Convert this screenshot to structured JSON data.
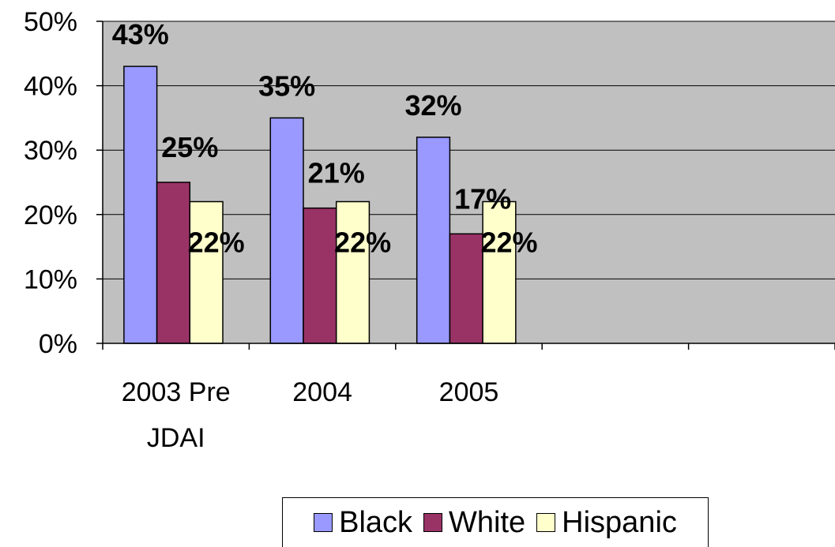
{
  "chart_data": {
    "type": "bar",
    "categories": [
      "2003 Pre JDAI",
      "2004",
      "2005"
    ],
    "category_lines": [
      [
        "2003 Pre",
        "JDAI"
      ],
      [
        "2004"
      ],
      [
        "2005"
      ]
    ],
    "empty_slots": 2,
    "series": [
      {
        "name": "Black",
        "values": [
          43,
          35,
          32
        ],
        "labels": [
          "43%",
          "35%",
          "32%"
        ],
        "color": "#9999ff"
      },
      {
        "name": "White",
        "values": [
          25,
          21,
          17
        ],
        "labels": [
          "25%",
          "21%",
          "17%"
        ],
        "color": "#993366"
      },
      {
        "name": "Hispanic",
        "values": [
          22,
          22,
          22
        ],
        "labels": [
          "22%",
          "22%",
          "22%"
        ],
        "color": "#ffffcc"
      }
    ],
    "ylim": [
      0,
      50
    ],
    "yticks": [
      0,
      10,
      20,
      30,
      40,
      50
    ],
    "ytick_labels": [
      "0%",
      "10%",
      "20%",
      "30%",
      "40%",
      "50%"
    ],
    "plot_background": "#c0c0c0",
    "gridlines": true,
    "legend_position": "bottom",
    "title": "",
    "xlabel": "",
    "ylabel": ""
  }
}
